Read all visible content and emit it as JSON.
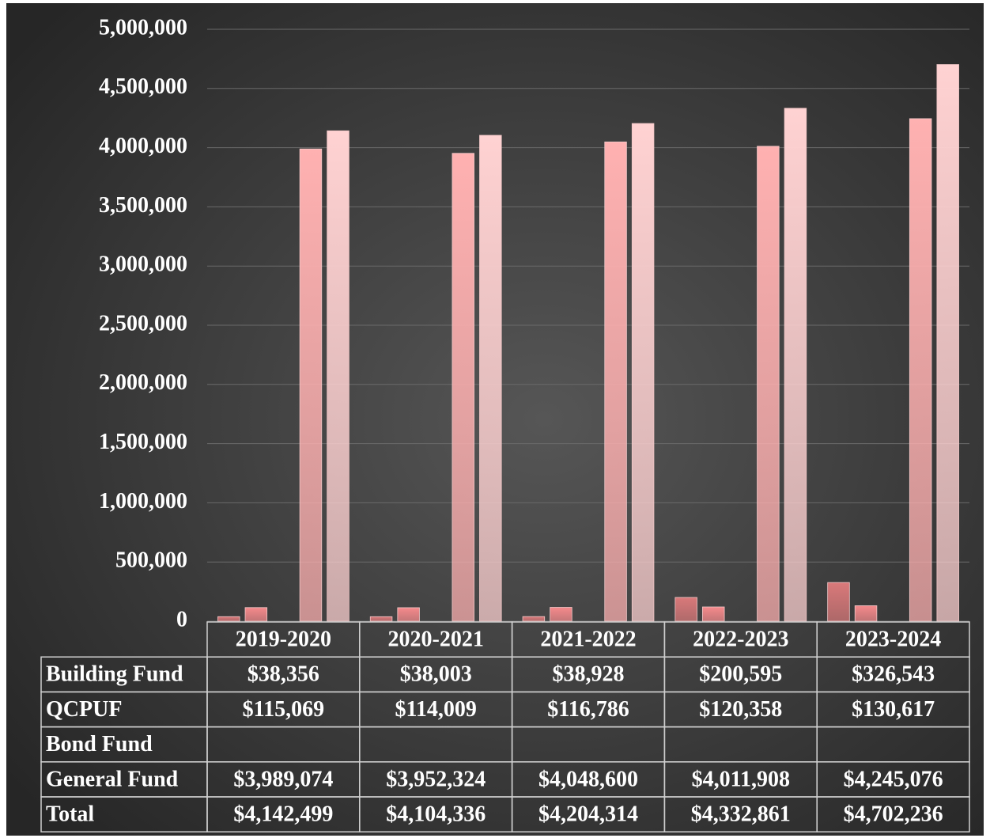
{
  "chart_data": {
    "type": "bar",
    "categories": [
      "2019-2020",
      "2020-2021",
      "2021-2022",
      "2022-2023",
      "2023-2024"
    ],
    "series": [
      {
        "name": "Building Fund",
        "color": "#d9797a",
        "values": [
          38356,
          38003,
          38928,
          200595,
          326543
        ],
        "value_labels": [
          "$38,356",
          "$38,003",
          "$38,928",
          "$200,595",
          "$326,543"
        ]
      },
      {
        "name": "QCPUF",
        "color": "#f58a8c",
        "values": [
          115069,
          114009,
          116786,
          120358,
          130617
        ],
        "value_labels": [
          "$115,069",
          "$114,009",
          "$116,786",
          "$120,358",
          "$130,617"
        ]
      },
      {
        "name": "Bond Fund",
        "color": "#f3a0a0",
        "values": [
          null,
          null,
          null,
          null,
          null
        ],
        "value_labels": [
          null,
          null,
          null,
          null,
          null
        ]
      },
      {
        "name": "General Fund",
        "color": "#ffb1b1",
        "values": [
          3989074,
          3952324,
          4048600,
          4011908,
          4245076
        ],
        "value_labels": [
          "$3,989,074",
          "$3,952,324",
          "$4,048,600",
          "$4,011,908",
          "$4,245,076"
        ]
      },
      {
        "name": "Total",
        "color": "#ffd2d2",
        "values": [
          4142499,
          4104336,
          4204314,
          4332861,
          4702236
        ],
        "value_labels": [
          "$4,142,499",
          "$4,104,336",
          "$4,204,314",
          "$4,332,861",
          "$4,702,236"
        ]
      }
    ],
    "ylim": [
      0,
      5000000
    ],
    "yticks": [
      0,
      {
        "value": 500000,
        "label": "500,000"
      },
      {
        "value": 1000000,
        "label": "1,000,000"
      },
      {
        "value": 1500000,
        "label": "1,500,000"
      },
      {
        "value": 2000000,
        "label": "2,000,000"
      },
      {
        "value": 2500000,
        "label": "2,500,000"
      },
      {
        "value": 3000000,
        "label": "3,000,000"
      },
      {
        "value": 3500000,
        "label": "3,500,000"
      },
      {
        "value": 4000000,
        "label": "4,000,000"
      },
      {
        "value": 4500000,
        "label": "4,500,000"
      },
      {
        "value": 5000000,
        "label": "5,000,000"
      }
    ],
    "grid": true
  }
}
